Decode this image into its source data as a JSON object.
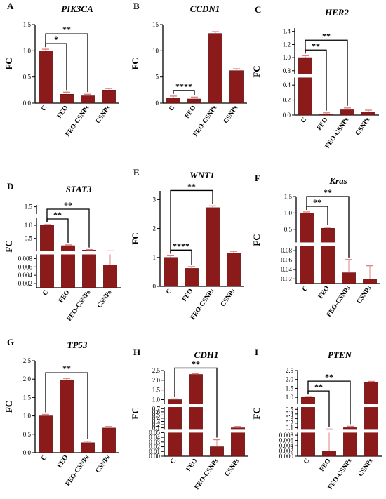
{
  "colors": {
    "bar": "#8b1a1a",
    "bar_edge": "#5a0f0f",
    "error": "#e08080",
    "axis": "#000000",
    "gap_fill": "#ffffff"
  },
  "chart_data": [
    {
      "id": "A",
      "panel_label": "A",
      "type": "bar",
      "title": "PIK3CA",
      "ylabel": "FC",
      "categories": [
        "C",
        "FEO",
        "FEO-CSNPs",
        "CSNPs"
      ],
      "values": [
        1.0,
        0.17,
        0.14,
        0.25
      ],
      "errors": [
        0.03,
        0.04,
        0.03,
        0.03
      ],
      "segments": [
        {
          "range": [
            0,
            1.5
          ],
          "ticks": [
            0,
            0.5,
            1.0,
            1.5
          ],
          "tick_labels": [
            "0.0",
            "0.5",
            "1.0",
            "1.5"
          ]
        }
      ],
      "significance": [
        {
          "from": 0,
          "to": 1,
          "label": "*"
        },
        {
          "from": 0,
          "to": 2,
          "label": "**"
        }
      ]
    },
    {
      "id": "B",
      "panel_label": "B",
      "type": "bar",
      "title": "CCDN1",
      "ylabel": "FC",
      "categories": [
        "C",
        "FEO",
        "FEO-CSNPs",
        "CSNPs"
      ],
      "values": [
        1.0,
        0.8,
        13.3,
        6.2
      ],
      "errors": [
        0.35,
        0.35,
        0.35,
        0.35
      ],
      "segments": [
        {
          "range": [
            0,
            15
          ],
          "ticks": [
            0,
            5,
            10,
            15
          ],
          "tick_labels": [
            "0",
            "5",
            "10",
            "15"
          ]
        }
      ],
      "significance": [
        {
          "from": 0,
          "to": 1,
          "label": "****"
        }
      ]
    },
    {
      "id": "C",
      "panel_label": "C",
      "type": "bar",
      "title": "HER2",
      "ylabel": "FC",
      "categories": [
        "C",
        "FEO",
        "FEO-CSNPs",
        "CSNPs"
      ],
      "values": [
        1.0,
        0.01,
        0.07,
        0.04
      ],
      "errors": [
        0.03,
        0.02,
        0.025,
        0.025
      ],
      "segments": [
        {
          "range": [
            0,
            0.5
          ],
          "ticks": [
            0,
            0.2,
            0.4
          ],
          "tick_labels": [
            "0.0",
            "0.2",
            "0.4"
          ]
        },
        {
          "range": [
            0.75,
            1.45
          ],
          "ticks": [
            0.8,
            1.0,
            1.2,
            1.4
          ],
          "tick_labels": [
            "0.8",
            "1.0",
            "1.2",
            "1.4"
          ]
        }
      ],
      "significance": [
        {
          "from": 0,
          "to": 1,
          "label": "**"
        },
        {
          "from": 0,
          "to": 2,
          "label": "**"
        }
      ]
    },
    {
      "id": "D",
      "panel_label": "D",
      "type": "bar",
      "title": "STAT3",
      "ylabel": "FC",
      "categories": [
        "C",
        "FEO",
        "FEO-CSNPs",
        "CSNPs"
      ],
      "values": [
        1.0,
        0.22,
        0.05,
        0.0065
      ],
      "errors": [
        0.03,
        0.03,
        0.02,
        0.003
      ],
      "segments": [
        {
          "range": [
            0.001,
            0.009
          ],
          "ticks": [
            0.002,
            0.004,
            0.006,
            0.008
          ],
          "tick_labels": [
            "0.002",
            "0.004",
            "0.006",
            "0.008"
          ]
        },
        {
          "range": [
            0.02,
            1.3
          ],
          "ticks": [
            0.5,
            1.0
          ],
          "tick_labels": [
            "0.5",
            "1.0"
          ]
        },
        {
          "range": [
            1.3,
            1.55
          ],
          "ticks": [
            1.5
          ],
          "tick_labels": [
            "1.5"
          ]
        }
      ],
      "significance": [
        {
          "from": 0,
          "to": 1,
          "label": "**"
        },
        {
          "from": 0,
          "to": 2,
          "label": "**"
        }
      ]
    },
    {
      "id": "E",
      "panel_label": "E",
      "type": "bar",
      "title": "WNT1",
      "ylabel": "FC",
      "categories": [
        "C",
        "FEO",
        "FEO-CSNPs",
        "CSNPs"
      ],
      "values": [
        1.0,
        0.62,
        2.72,
        1.15
      ],
      "errors": [
        0.06,
        0.06,
        0.06,
        0.06
      ],
      "segments": [
        {
          "range": [
            0,
            3.3
          ],
          "ticks": [
            0,
            1,
            2,
            3
          ],
          "tick_labels": [
            "0",
            "1",
            "2",
            "3"
          ]
        }
      ],
      "significance": [
        {
          "from": 0,
          "to": 1,
          "label": "****"
        },
        {
          "from": 0,
          "to": 2,
          "label": "**"
        }
      ]
    },
    {
      "id": "F",
      "panel_label": "F",
      "type": "bar",
      "title": "Kras",
      "ylabel": "FC",
      "categories": [
        "C",
        "FEO",
        "FEO-CSNPs",
        "CSNPs"
      ],
      "values": [
        1.0,
        0.53,
        0.033,
        0.02
      ],
      "errors": [
        0.03,
        0.03,
        0.028,
        0.028
      ],
      "segments": [
        {
          "range": [
            0.01,
            0.09
          ],
          "ticks": [
            0.02,
            0.04,
            0.06,
            0.08
          ],
          "tick_labels": [
            "0.02",
            "0.04",
            "0.06",
            "0.08"
          ]
        },
        {
          "range": [
            0.1,
            1.5
          ],
          "ticks": [
            0.5,
            1.0,
            1.5
          ],
          "tick_labels": [
            "0.5",
            "1.0",
            "1.5"
          ]
        }
      ],
      "significance": [
        {
          "from": 0,
          "to": 1,
          "label": "**"
        },
        {
          "from": 0,
          "to": 2,
          "label": "**"
        }
      ]
    },
    {
      "id": "G",
      "panel_label": "G",
      "type": "bar",
      "title": "TP53",
      "ylabel": "FC",
      "categories": [
        "C",
        "FEO",
        "FEO-CSNPs",
        "CSNPs"
      ],
      "values": [
        1.0,
        1.98,
        0.27,
        0.67
      ],
      "errors": [
        0.04,
        0.04,
        0.04,
        0.04
      ],
      "segments": [
        {
          "range": [
            0,
            2.5
          ],
          "ticks": [
            0,
            0.5,
            1.0,
            1.5,
            2.0,
            2.5
          ],
          "tick_labels": [
            "0.0",
            "0.5",
            "1.0",
            "1.5",
            "2.0",
            "2.5"
          ]
        }
      ],
      "significance": [
        {
          "from": 0,
          "to": 2,
          "label": "**"
        }
      ]
    },
    {
      "id": "H",
      "panel_label": "H",
      "type": "bar",
      "title": "CDH1",
      "ylabel": "FC",
      "categories": [
        "C",
        "FEO",
        "FEO-CSNPs",
        "CSNPs"
      ],
      "values": [
        1.0,
        2.3,
        0.02,
        0.1
      ],
      "errors": [
        0.04,
        0.04,
        0.015,
        0.04
      ],
      "segments": [
        {
          "range": [
            0,
            0.05
          ],
          "ticks": [
            0,
            0.01,
            0.02,
            0.03,
            0.04,
            0.05
          ],
          "tick_labels": [
            "0.00",
            "0.01",
            "0.02",
            "0.03",
            "0.04",
            "0.05"
          ]
        },
        {
          "range": [
            0.06,
            0.75
          ],
          "ticks": [
            0.1,
            0.2,
            0.3,
            0.4,
            0.5,
            0.6,
            0.7
          ],
          "tick_labels": [
            "0.1",
            "0.2",
            "0.3",
            "0.4",
            "0.5",
            "0.6",
            "0.7"
          ]
        },
        {
          "range": [
            0.8,
            2.5
          ],
          "ticks": [
            1.0,
            1.5,
            2.0,
            2.5
          ],
          "tick_labels": [
            "1.0",
            "1.5",
            "2.0",
            "2.5"
          ]
        }
      ],
      "significance": [
        {
          "from": 0,
          "to": 2,
          "label": "**"
        }
      ]
    },
    {
      "id": "I",
      "panel_label": "I",
      "type": "bar",
      "title": "PTEN",
      "ylabel": "FC",
      "categories": [
        "C",
        "FEO",
        "FEO-CSNPs",
        "CSNPs"
      ],
      "values": [
        1.0,
        0.002,
        0.1,
        1.85
      ],
      "errors": [
        0.04,
        0.04,
        0.03,
        0.04
      ],
      "segments": [
        {
          "range": [
            0,
            0.009
          ],
          "ticks": [
            0,
            0.002,
            0.004,
            0.006,
            0.008
          ],
          "tick_labels": [
            "0.000",
            "0.002",
            "0.004",
            "0.006",
            "0.008"
          ]
        },
        {
          "range": [
            0.07,
            0.55
          ],
          "ticks": [
            0.1,
            0.2,
            0.3,
            0.4,
            0.5
          ],
          "tick_labels": [
            "0.1",
            "0.2",
            "0.3",
            "0.4",
            "0.5"
          ]
        },
        {
          "range": [
            0.65,
            2.5
          ],
          "ticks": [
            1.0,
            1.5,
            2.0,
            2.5
          ],
          "tick_labels": [
            "1.0",
            "1.5",
            "2.0",
            "2.5"
          ]
        }
      ],
      "significance": [
        {
          "from": 0,
          "to": 1,
          "label": "**"
        },
        {
          "from": 0,
          "to": 2,
          "label": "**"
        }
      ]
    }
  ]
}
